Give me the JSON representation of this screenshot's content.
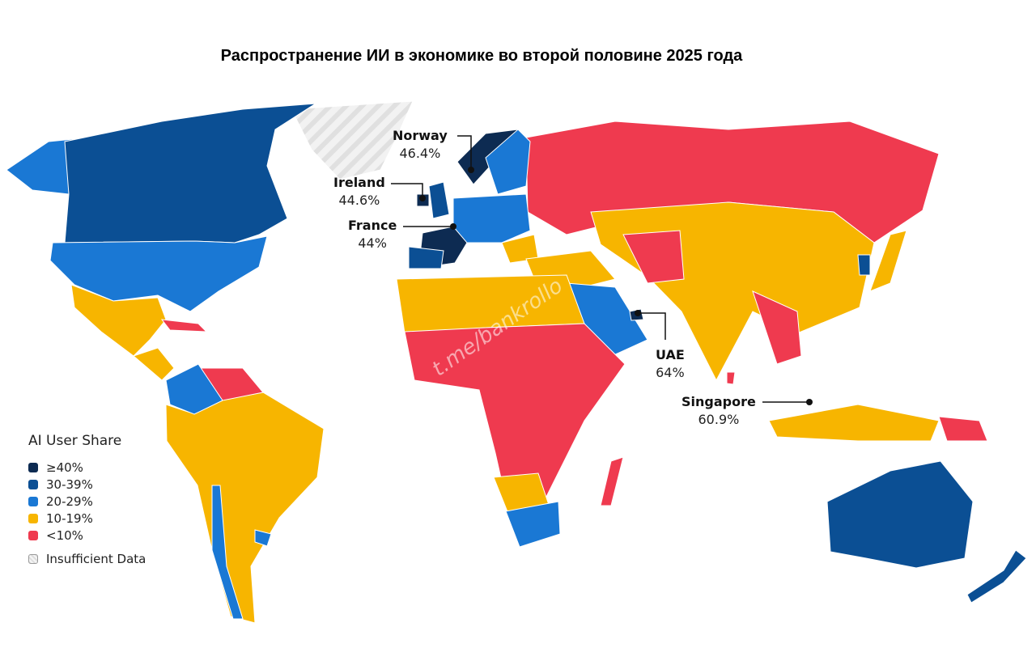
{
  "title": "Распространение ИИ в экономике во второй половине 2025 года",
  "colors": {
    "ge40": "#0d2b52",
    "b30_39": "#0b4f94",
    "b20_29": "#1a78d4",
    "b10_19": "#f7b500",
    "lt10": "#ef3a4f",
    "insufficient": "#e6e6e6"
  },
  "legend": {
    "title": "AI User Share",
    "items": [
      {
        "label": "≥40%",
        "color": "#0d2b52"
      },
      {
        "label": "30-39%",
        "color": "#0b4f94"
      },
      {
        "label": "20-29%",
        "color": "#1a78d4"
      },
      {
        "label": "10-19%",
        "color": "#f7b500"
      },
      {
        "label": "<10%",
        "color": "#ef3a4f"
      },
      {
        "label": "Insufficient Data",
        "color": "hatch"
      }
    ]
  },
  "callouts": [
    {
      "country": "Norway",
      "value": "46.4%"
    },
    {
      "country": "Ireland",
      "value": "44.6%"
    },
    {
      "country": "France",
      "value": "44%"
    },
    {
      "country": "UAE",
      "value": "64%"
    },
    {
      "country": "Singapore",
      "value": "60.9%"
    }
  ],
  "watermark": "t.me/bankrollo"
}
